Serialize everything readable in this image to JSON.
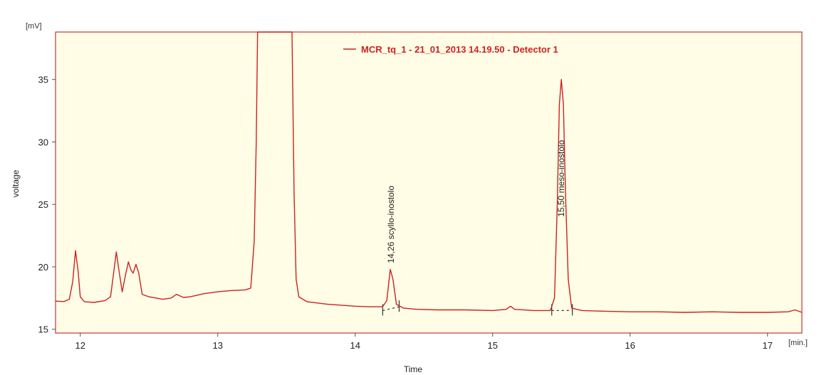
{
  "chart_data": {
    "type": "line",
    "xlabel": "Time",
    "ylabel": "voltage",
    "x_unit": "[min.]",
    "y_unit": "[mV]",
    "xlim": [
      11.82,
      17.25
    ],
    "ylim": [
      14.7,
      38.8
    ],
    "x_ticks": [
      12,
      13,
      14,
      15,
      16,
      17
    ],
    "y_ticks": [
      15,
      20,
      25,
      30,
      35
    ],
    "grid": false,
    "legend_position": "top",
    "colors": {
      "plot_background": "#fffde6",
      "frame": "#cc3333",
      "trace": "#cc2222",
      "legend_text": "#d42020",
      "baseline_marker": "#333333"
    },
    "series": [
      {
        "name": "MCR_tq_1 - 21_01_2013 14.19.50  -  Detector 1",
        "points": [
          [
            11.82,
            17.25
          ],
          [
            11.88,
            17.22
          ],
          [
            11.92,
            17.4
          ],
          [
            11.945,
            18.8
          ],
          [
            11.965,
            21.3
          ],
          [
            11.985,
            19.6
          ],
          [
            12.0,
            17.6
          ],
          [
            12.03,
            17.2
          ],
          [
            12.1,
            17.15
          ],
          [
            12.18,
            17.3
          ],
          [
            12.22,
            17.6
          ],
          [
            12.245,
            19.7
          ],
          [
            12.262,
            21.2
          ],
          [
            12.28,
            19.8
          ],
          [
            12.305,
            18.0
          ],
          [
            12.33,
            19.4
          ],
          [
            12.35,
            20.4
          ],
          [
            12.37,
            19.7
          ],
          [
            12.385,
            19.5
          ],
          [
            12.405,
            20.2
          ],
          [
            12.425,
            19.5
          ],
          [
            12.45,
            17.8
          ],
          [
            12.5,
            17.6
          ],
          [
            12.6,
            17.4
          ],
          [
            12.66,
            17.5
          ],
          [
            12.7,
            17.8
          ],
          [
            12.75,
            17.55
          ],
          [
            12.8,
            17.6
          ],
          [
            12.9,
            17.85
          ],
          [
            13.0,
            18.0
          ],
          [
            13.1,
            18.1
          ],
          [
            13.2,
            18.15
          ],
          [
            13.24,
            18.3
          ],
          [
            13.265,
            22.0
          ],
          [
            13.28,
            30.0
          ],
          [
            13.29,
            38.8
          ],
          [
            13.54,
            38.8
          ],
          [
            13.555,
            26.0
          ],
          [
            13.57,
            19.0
          ],
          [
            13.59,
            17.6
          ],
          [
            13.65,
            17.2
          ],
          [
            13.8,
            17.0
          ],
          [
            14.0,
            16.85
          ],
          [
            14.1,
            16.8
          ],
          [
            14.2,
            16.8
          ],
          [
            14.23,
            17.3
          ],
          [
            14.255,
            19.8
          ],
          [
            14.275,
            19.0
          ],
          [
            14.3,
            17.0
          ],
          [
            14.35,
            16.7
          ],
          [
            14.45,
            16.6
          ],
          [
            14.6,
            16.55
          ],
          [
            14.8,
            16.55
          ],
          [
            15.0,
            16.5
          ],
          [
            15.1,
            16.6
          ],
          [
            15.13,
            16.85
          ],
          [
            15.16,
            16.6
          ],
          [
            15.3,
            16.5
          ],
          [
            15.42,
            16.5
          ],
          [
            15.45,
            17.5
          ],
          [
            15.47,
            25.0
          ],
          [
            15.485,
            33.0
          ],
          [
            15.5,
            35.0
          ],
          [
            15.515,
            33.0
          ],
          [
            15.53,
            26.0
          ],
          [
            15.55,
            19.0
          ],
          [
            15.575,
            16.7
          ],
          [
            15.65,
            16.5
          ],
          [
            15.8,
            16.45
          ],
          [
            16.0,
            16.4
          ],
          [
            16.2,
            16.4
          ],
          [
            16.4,
            16.35
          ],
          [
            16.6,
            16.4
          ],
          [
            16.8,
            16.35
          ],
          [
            17.0,
            16.35
          ],
          [
            17.15,
            16.4
          ],
          [
            17.2,
            16.55
          ],
          [
            17.25,
            16.35
          ]
        ]
      }
    ],
    "peak_labels": [
      {
        "label": "14,26 scyllo-inostolo",
        "x": 14.26,
        "y": 20.3
      },
      {
        "label": "15,50 meso-inostolo",
        "x": 15.5,
        "y": 24.0
      }
    ],
    "baselines": [
      {
        "x_start": 14.2,
        "x_end": 14.32,
        "y_start": 16.5,
        "y_end": 16.8
      },
      {
        "x_start": 15.43,
        "x_end": 15.58,
        "y_start": 16.5,
        "y_end": 16.5
      }
    ]
  }
}
